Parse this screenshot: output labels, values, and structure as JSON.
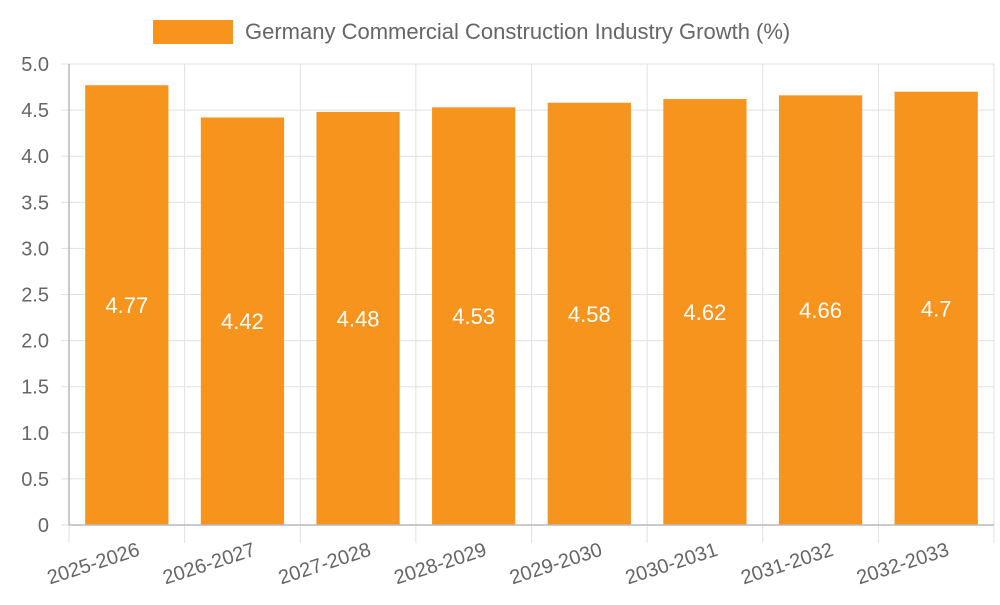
{
  "chart_data": {
    "type": "bar",
    "categories": [
      "2025-2026",
      "2026-2027",
      "2027-2028",
      "2028-2029",
      "2029-2030",
      "2030-2031",
      "2031-2032",
      "2032-2033"
    ],
    "series": [
      {
        "name": "Germany Commercial Construction Industry Growth (%)",
        "values": [
          4.77,
          4.42,
          4.48,
          4.53,
          4.58,
          4.62,
          4.66,
          4.7
        ],
        "color": "#f7941d"
      }
    ],
    "data_labels": [
      "4.77",
      "4.42",
      "4.48",
      "4.53",
      "4.58",
      "4.62",
      "4.66",
      "4.7"
    ],
    "y_ticks": [
      "0",
      "0.5",
      "1.0",
      "1.5",
      "2.0",
      "2.5",
      "3.0",
      "3.5",
      "4.0",
      "4.5",
      "5.0"
    ],
    "ylim": [
      0,
      5
    ],
    "grid": true,
    "legend_position": "top"
  }
}
